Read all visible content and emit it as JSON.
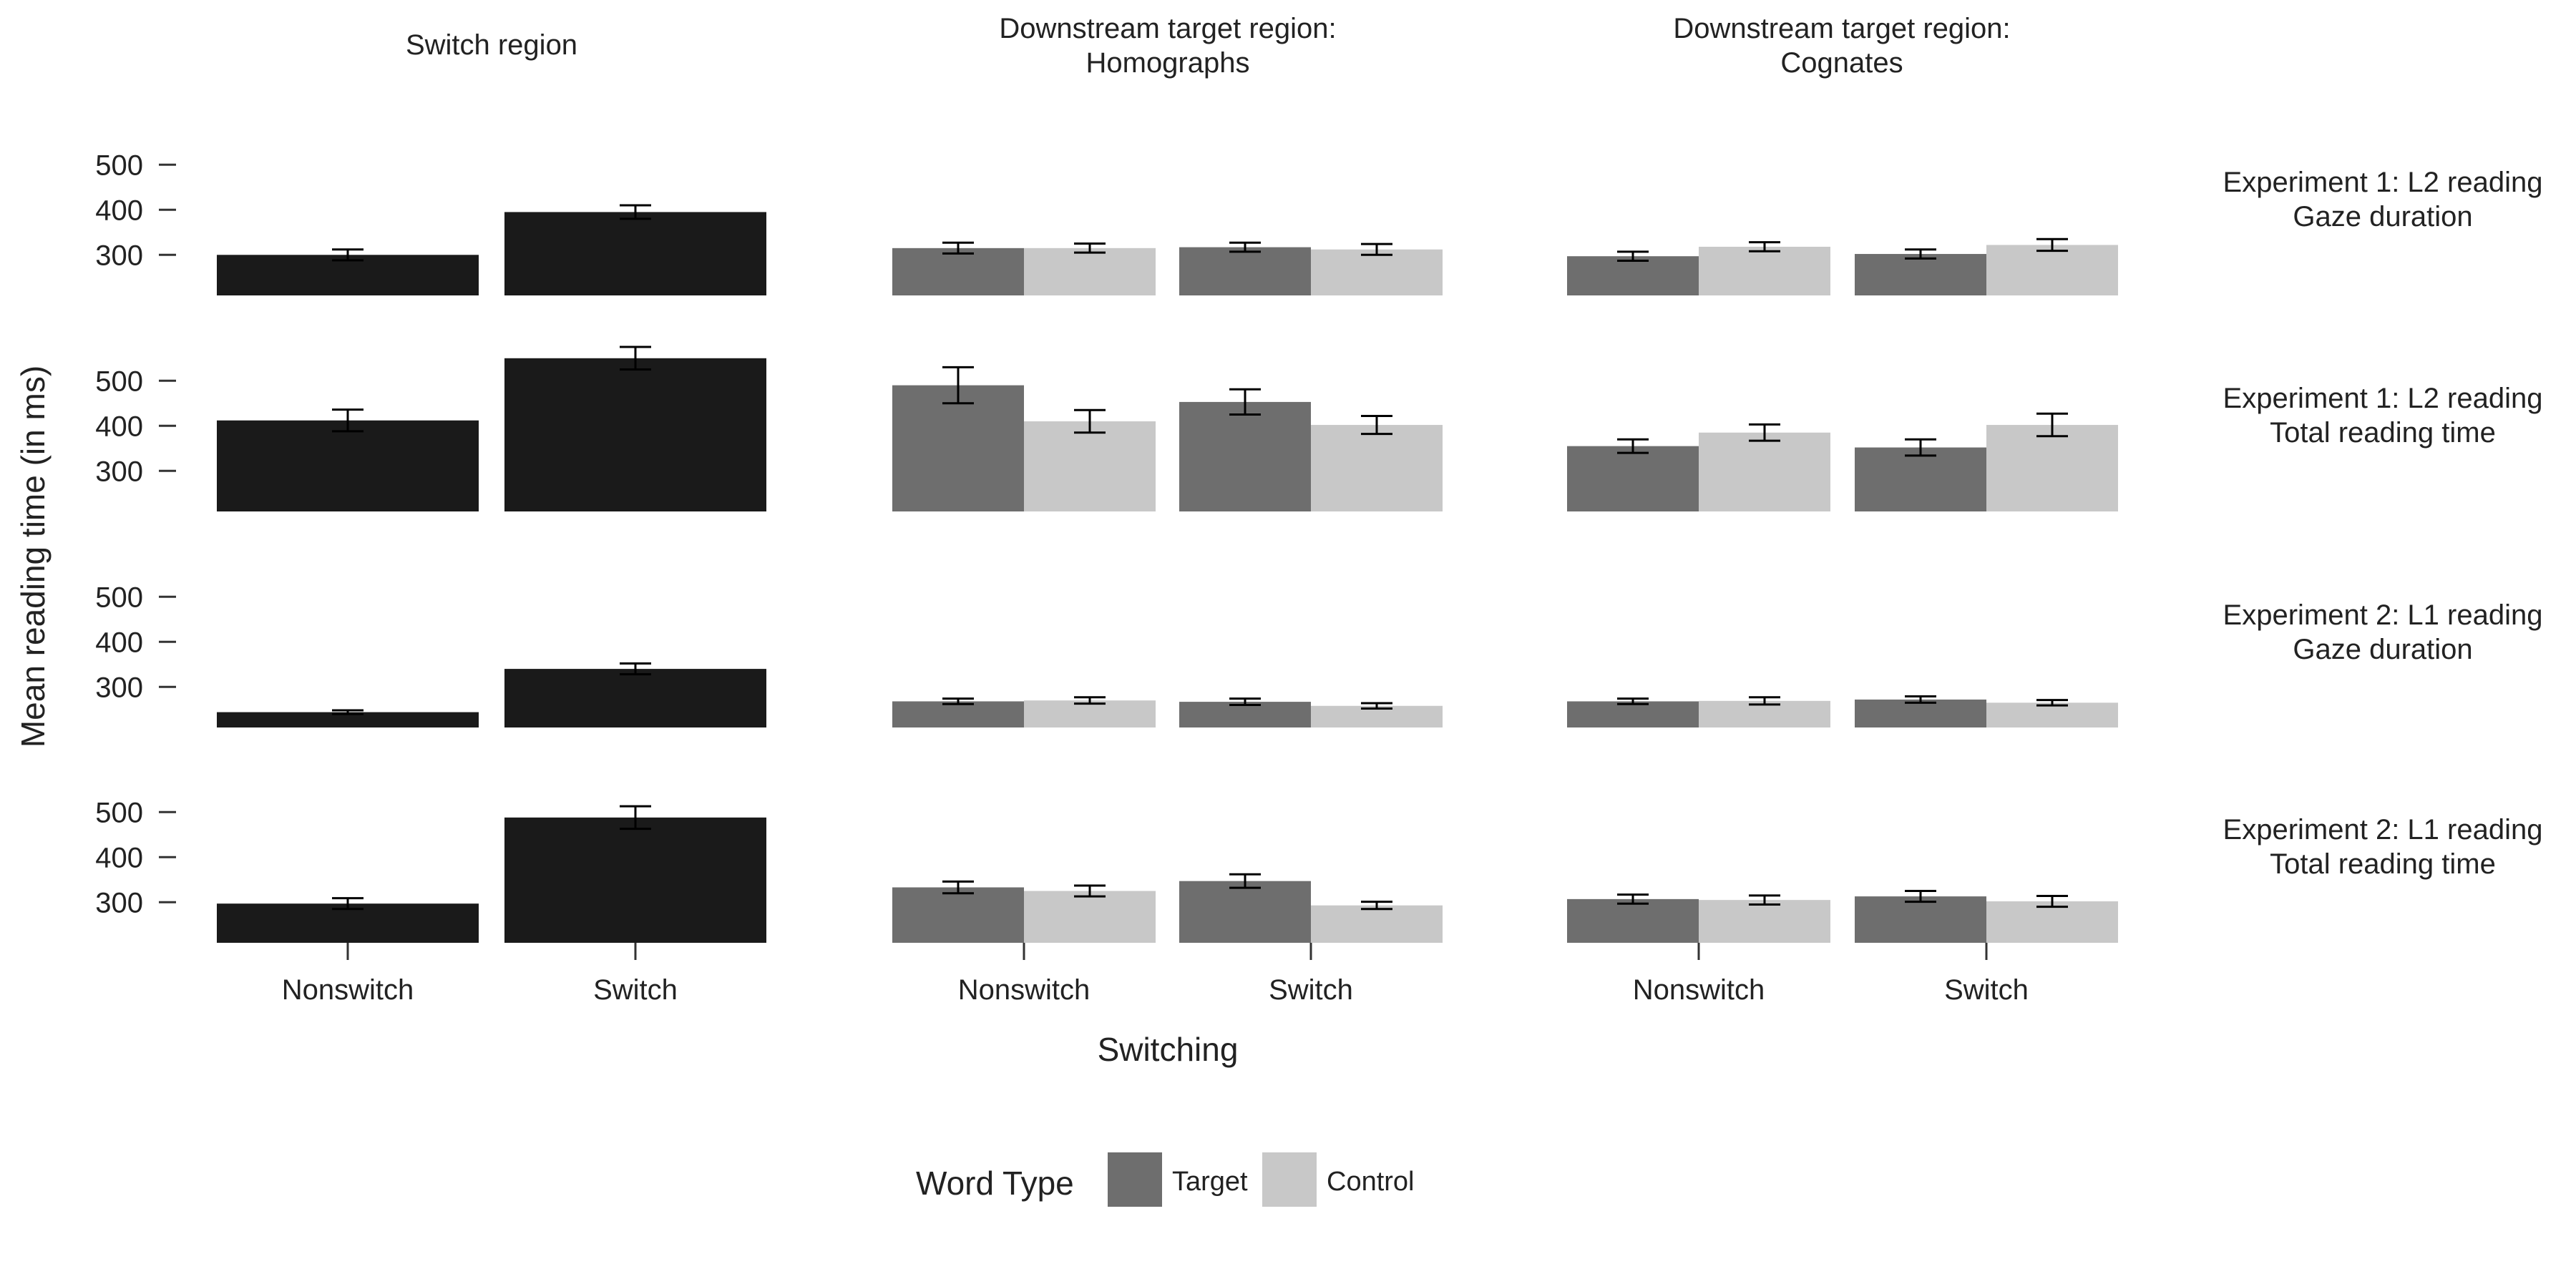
{
  "chart_data": {
    "type": "bar",
    "ylabel": "Mean reading time (in ms)",
    "xlabel": "Switching",
    "categories": [
      "Nonswitch",
      "Switch"
    ],
    "yticks": [
      300,
      400,
      500
    ],
    "ylim": [
      210,
      520
    ],
    "grid": false,
    "legend": {
      "title": "Word Type",
      "position": "bottom",
      "entries": [
        {
          "label": "Target",
          "color": "#6e6e6e"
        },
        {
          "label": "Control",
          "color": "#c8c8c8"
        }
      ]
    },
    "colors": {
      "switch_region": "#1a1a1a",
      "target": "#6e6e6e",
      "control": "#c8c8c8"
    },
    "columns": [
      {
        "title": [
          "Switch region"
        ],
        "series": [
          "Switch region"
        ]
      },
      {
        "title": [
          "Downstream target region:",
          "Homographs"
        ],
        "series": [
          "Target",
          "Control"
        ]
      },
      {
        "title": [
          "Downstream target region:",
          "Cognates"
        ],
        "series": [
          "Target",
          "Control"
        ]
      }
    ],
    "rows": [
      {
        "title": [
          "Experiment 1: L2 reading",
          "Gaze duration"
        ],
        "panels": [
          {
            "values": [
              [
                300
              ],
              [
                395
              ]
            ],
            "errors": [
              [
                12
              ],
              [
                15
              ]
            ]
          },
          {
            "values": [
              [
                315,
                315
              ],
              [
                317,
                312
              ]
            ],
            "errors": [
              [
                12,
                10
              ],
              [
                10,
                12
              ]
            ]
          },
          {
            "values": [
              [
                297,
                318
              ],
              [
                302,
                322
              ]
            ],
            "errors": [
              [
                10,
                10
              ],
              [
                10,
                13
              ]
            ]
          }
        ]
      },
      {
        "title": [
          "Experiment 1: L2 reading",
          "Total reading time"
        ],
        "panels": [
          {
            "values": [
              [
                412
              ],
              [
                550
              ]
            ],
            "errors": [
              [
                24
              ],
              [
                25
              ]
            ]
          },
          {
            "values": [
              [
                490,
                410
              ],
              [
                453,
                402
              ]
            ],
            "errors": [
              [
                40,
                25
              ],
              [
                28,
                20
              ]
            ]
          },
          {
            "values": [
              [
                355,
                385
              ],
              [
                352,
                402
              ]
            ],
            "errors": [
              [
                15,
                18
              ],
              [
                18,
                25
              ]
            ]
          }
        ]
      },
      {
        "title": [
          "Experiment 2: L1 reading",
          "Gaze duration"
        ],
        "panels": [
          {
            "values": [
              [
                244
              ],
              [
                340
              ]
            ],
            "errors": [
              [
                4
              ],
              [
                12
              ]
            ]
          },
          {
            "values": [
              [
                268,
                270
              ],
              [
                267,
                258
              ]
            ],
            "errors": [
              [
                6,
                7
              ],
              [
                7,
                6
              ]
            ]
          },
          {
            "values": [
              [
                268,
                269
              ],
              [
                272,
                265
              ]
            ],
            "errors": [
              [
                6,
                8
              ],
              [
                7,
                6
              ]
            ]
          }
        ]
      },
      {
        "title": [
          "Experiment 2: L1 reading",
          "Total reading time"
        ],
        "panels": [
          {
            "values": [
              [
                297
              ],
              [
                488
              ]
            ],
            "errors": [
              [
                12
              ],
              [
                25
              ]
            ]
          },
          {
            "values": [
              [
                333,
                325
              ],
              [
                347,
                293
              ]
            ],
            "errors": [
              [
                13,
                12
              ],
              [
                15,
                8
              ]
            ]
          },
          {
            "values": [
              [
                307,
                305
              ],
              [
                313,
                302
              ]
            ],
            "errors": [
              [
                10,
                10
              ],
              [
                12,
                12
              ]
            ]
          }
        ]
      }
    ]
  }
}
